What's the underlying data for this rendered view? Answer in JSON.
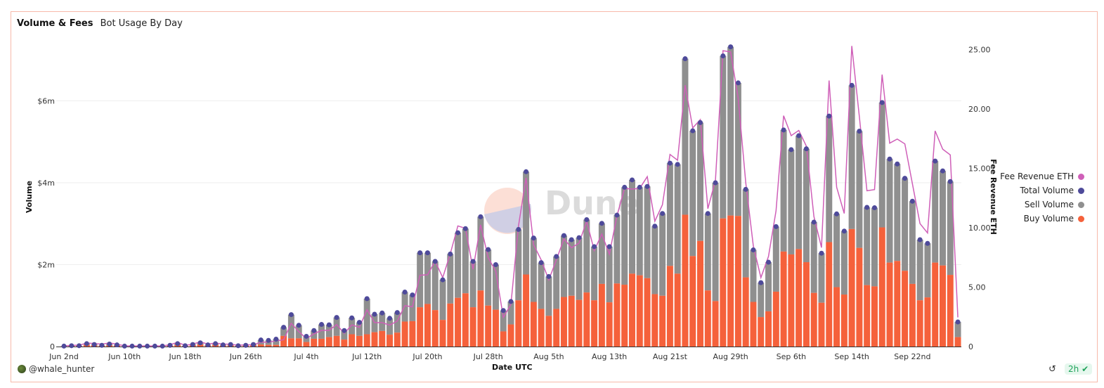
{
  "header": {
    "title": "Volume & Fees",
    "subtitle": "Bot Usage By Day"
  },
  "footer": {
    "user": "@whale_hunter",
    "refresh_age": "2h",
    "refresh_icon": "refresh-icon",
    "status_icon": "check-circle-icon"
  },
  "watermark": "Dune",
  "colors": {
    "buy": "#f5613b",
    "sell": "#8f8f8f",
    "total": "#4e4a9a",
    "fee": "#cf5fb8",
    "border": "#f7b9aa"
  },
  "chart_data": {
    "type": "bar",
    "title": "Volume & Fees",
    "subtitle": "Bot Usage By Day",
    "xlabel": "Date UTC",
    "ylabel": "Volume",
    "y2label": "Fee Revenue ETH",
    "start_date": "Jun 2nd",
    "x_ticks": [
      "Jun 2nd",
      "Jun 10th",
      "Jun 18th",
      "Jun 26th",
      "Jul 4th",
      "Jul 12th",
      "Jul 20th",
      "Jul 28th",
      "Aug 5th",
      "Aug 13th",
      "Aug 21st",
      "Aug 29th",
      "Sep 6th",
      "Sep 14th",
      "Sep 22nd"
    ],
    "x_tick_every_days": 8,
    "y_ticks": [
      "0",
      "$2m",
      "$4m",
      "$6m"
    ],
    "y_tick_values": [
      0,
      2,
      4,
      6
    ],
    "y2_ticks": [
      "0",
      "5.00",
      "10.00",
      "15.00",
      "20.00",
      "25.00"
    ],
    "y2_tick_values": [
      0,
      5,
      10,
      15,
      20,
      25
    ],
    "ylim": [
      0,
      7.4
    ],
    "y2lim": [
      0,
      25.5
    ],
    "units": "USD millions",
    "legend": [
      "Fee Revenue ETH",
      "Total Volume",
      "Sell Volume",
      "Buy Volume"
    ],
    "legend_position": "right",
    "grid": true,
    "series": [
      {
        "name": "Total Volume",
        "values": [
          0.01,
          0.02,
          0.02,
          0.07,
          0.05,
          0.03,
          0.06,
          0.04,
          0.01,
          0.01,
          0.01,
          0.01,
          0.01,
          0.01,
          0.03,
          0.07,
          0.02,
          0.05,
          0.09,
          0.04,
          0.07,
          0.04,
          0.05,
          0.02,
          0.03,
          0.05,
          0.16,
          0.15,
          0.18,
          0.47,
          0.78,
          0.52,
          0.25,
          0.39,
          0.54,
          0.53,
          0.71,
          0.39,
          0.7,
          0.59,
          1.17,
          0.79,
          0.82,
          0.69,
          0.83,
          1.33,
          1.26,
          2.29,
          2.29,
          2.08,
          1.63,
          2.26,
          2.78,
          2.88,
          2.08,
          3.17,
          2.37,
          2.0,
          0.88,
          1.1,
          2.86,
          4.27,
          2.65,
          2.05,
          1.71,
          2.2,
          2.71,
          2.61,
          2.66,
          3.1,
          2.44,
          3.01,
          2.44,
          3.21,
          3.89,
          4.07,
          3.89,
          3.91,
          2.94,
          3.25,
          4.48,
          4.45,
          7.03,
          5.27,
          5.47,
          3.25,
          4.0,
          7.1,
          7.32,
          6.44,
          3.84,
          2.36,
          1.56,
          2.06,
          2.93,
          5.29,
          4.81,
          5.15,
          4.83,
          3.04,
          2.28,
          5.63,
          3.24,
          2.82,
          6.38,
          5.26,
          3.4,
          3.39,
          5.96,
          4.58,
          4.46,
          4.11,
          3.55,
          2.61,
          2.52,
          4.53,
          4.29,
          4.03,
          0.6
        ]
      },
      {
        "name": "Buy Volume",
        "values": [
          0.005,
          0.01,
          0.01,
          0.04,
          0.03,
          0.02,
          0.03,
          0.02,
          0.005,
          0.005,
          0.005,
          0.005,
          0.005,
          0.005,
          0.02,
          0.04,
          0.01,
          0.03,
          0.05,
          0.02,
          0.04,
          0.02,
          0.03,
          0.01,
          0.02,
          0.03,
          0.05,
          0.04,
          0.04,
          0.26,
          0.2,
          0.2,
          0.11,
          0.19,
          0.19,
          0.23,
          0.26,
          0.17,
          0.3,
          0.26,
          0.3,
          0.35,
          0.38,
          0.29,
          0.34,
          0.61,
          0.62,
          0.96,
          1.04,
          0.89,
          0.65,
          1.05,
          1.19,
          1.3,
          0.96,
          1.37,
          1.0,
          0.9,
          0.37,
          0.54,
          1.13,
          1.76,
          1.09,
          0.92,
          0.75,
          0.92,
          1.21,
          1.24,
          1.14,
          1.32,
          1.13,
          1.53,
          1.08,
          1.54,
          1.51,
          1.78,
          1.74,
          1.67,
          1.28,
          1.24,
          1.97,
          1.78,
          3.22,
          2.21,
          2.58,
          1.37,
          1.11,
          3.13,
          3.2,
          3.19,
          1.69,
          1.09,
          0.72,
          0.86,
          1.34,
          2.32,
          2.25,
          2.38,
          2.06,
          1.31,
          1.07,
          2.55,
          1.45,
          1.27,
          2.87,
          2.41,
          1.5,
          1.47,
          2.91,
          2.05,
          2.09,
          1.85,
          1.53,
          1.13,
          1.2,
          2.05,
          1.98,
          1.75,
          0.23
        ]
      },
      {
        "name": "Fee Revenue ETH",
        "axis": "right",
        "values": [
          0.05,
          0.1,
          0.1,
          0.3,
          0.25,
          0.2,
          0.3,
          0.2,
          0.05,
          0.05,
          0.05,
          0.05,
          0.05,
          0.05,
          0.15,
          0.35,
          0.1,
          0.2,
          0.4,
          0.2,
          0.3,
          0.2,
          0.2,
          0.1,
          0.15,
          0.14,
          0.37,
          0.37,
          0.47,
          0.57,
          1.95,
          1.26,
          0.67,
          1.07,
          1.36,
          1.36,
          1.85,
          1.11,
          1.82,
          1.62,
          3.1,
          2.01,
          2.01,
          1.8,
          2.15,
          3.44,
          3.34,
          6.0,
          6.04,
          7.19,
          5.8,
          7.82,
          10.15,
          9.95,
          6.5,
          10.25,
          7.48,
          6.34,
          2.45,
          3.54,
          10.15,
          14.2,
          8.57,
          7.29,
          5.61,
          7.29,
          9.06,
          8.31,
          8.71,
          10.55,
          8.08,
          9.46,
          7.78,
          11.0,
          13.31,
          13.25,
          13.31,
          14.3,
          10.55,
          11.93,
          16.17,
          15.68,
          22.0,
          18.4,
          19.1,
          11.6,
          14.0,
          24.9,
          24.8,
          20.9,
          13.8,
          8.47,
          5.8,
          7.58,
          11.43,
          19.43,
          17.75,
          18.19,
          16.87,
          10.94,
          8.33,
          22.39,
          13.41,
          11.2,
          25.3,
          19.33,
          13.11,
          13.21,
          22.89,
          17.12,
          17.46,
          17.06,
          13.7,
          10.35,
          9.56,
          18.15,
          16.61,
          16.13,
          2.45
        ]
      }
    ],
    "sell_volume_note": "Sell Volume = Total Volume - Buy Volume"
  }
}
